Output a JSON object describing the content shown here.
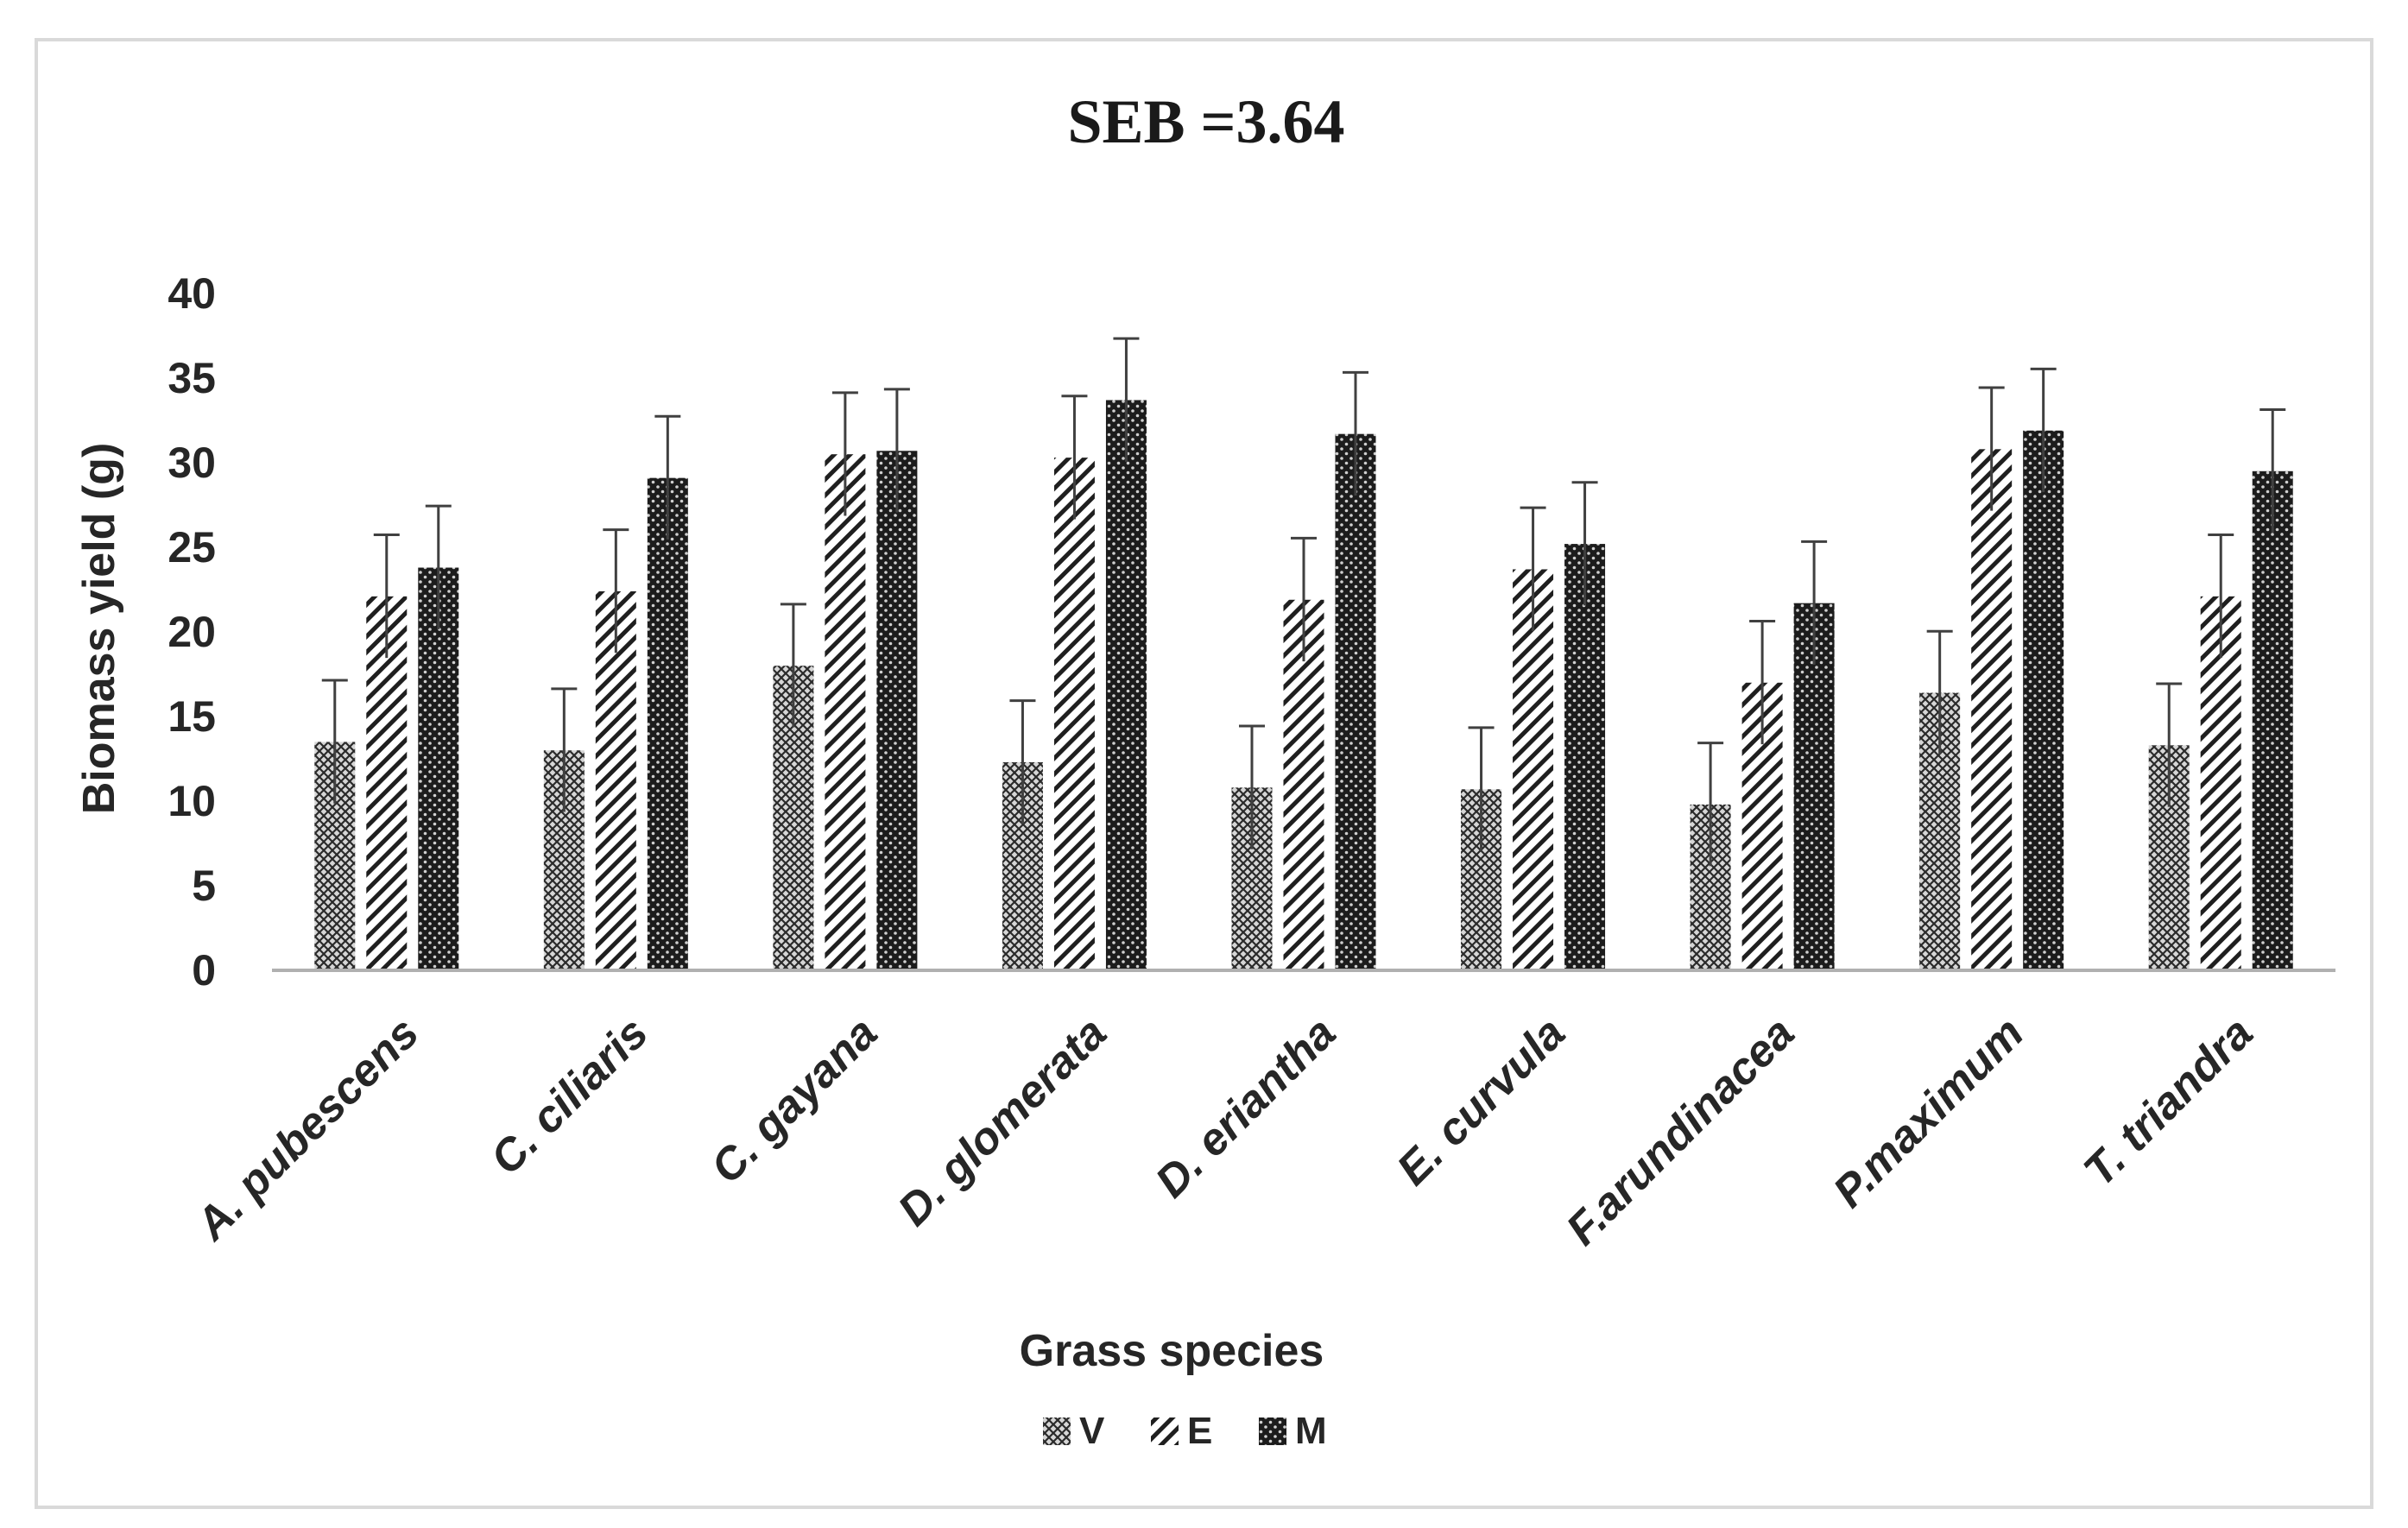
{
  "colors": {
    "text": "#262626",
    "title": "#1a1a1a",
    "axis": "#b0b0b0",
    "frame": "#d9d9d9",
    "errorbar": "#404040"
  },
  "chart_data": {
    "type": "bar",
    "title": "SEB =3.64",
    "xlabel": "Grass species",
    "ylabel": "Biomass yield (g)",
    "ylim": [
      0,
      40
    ],
    "yticks": [
      0,
      5,
      10,
      15,
      20,
      25,
      30,
      35,
      40
    ],
    "grid": false,
    "legend_position": "bottom",
    "error_bar": 3.64,
    "categories": [
      "A. pubescens",
      "C. ciliaris",
      "C. gayana",
      "D. glomerata",
      "D. eriantha",
      "E. curvula",
      "F.arundinacea",
      "P.maximum",
      "T. triandra"
    ],
    "series": [
      {
        "name": "V",
        "pattern": "cross-hatch",
        "values": [
          13.5,
          13.0,
          18.0,
          12.3,
          10.8,
          10.7,
          9.8,
          16.4,
          13.3
        ]
      },
      {
        "name": "E",
        "pattern": "diagonal",
        "values": [
          22.1,
          22.4,
          30.5,
          30.3,
          21.9,
          23.7,
          17.0,
          30.8,
          22.1
        ]
      },
      {
        "name": "M",
        "pattern": "dotted-dark",
        "values": [
          23.8,
          29.1,
          30.7,
          33.7,
          31.7,
          25.2,
          21.7,
          31.9,
          29.5
        ]
      }
    ]
  }
}
